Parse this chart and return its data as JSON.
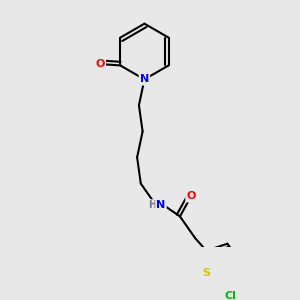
{
  "background_color": "#e8e8e8",
  "atom_colors": {
    "N": "#0000ff",
    "O": "#ff0000",
    "S": "#cccc00",
    "Cl": "#00bb00",
    "H": "#777777"
  },
  "bond_color": "#000000",
  "bond_width": 1.5
}
